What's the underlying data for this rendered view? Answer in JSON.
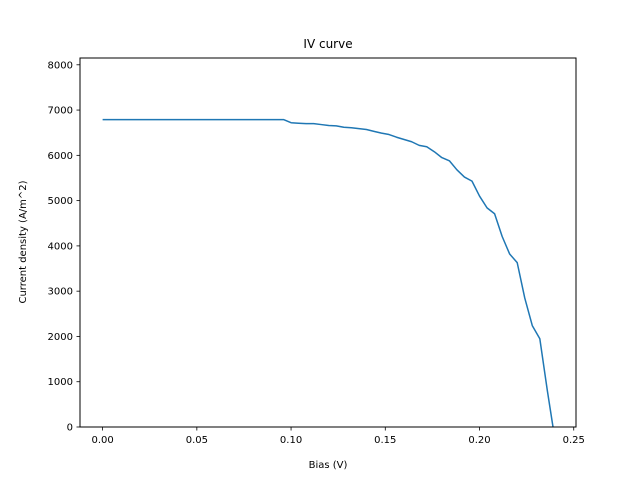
{
  "chart_data": {
    "type": "line",
    "title": "IV curve",
    "xlabel": "Bias (V)",
    "ylabel": "Current density (A/m^2)",
    "xlim": [
      -0.012,
      0.2512
    ],
    "ylim": [
      0,
      8150
    ],
    "xticks": [
      0.0,
      0.05,
      0.1,
      0.15,
      0.2,
      0.25
    ],
    "xtick_labels": [
      "0.00",
      "0.05",
      "0.10",
      "0.15",
      "0.20",
      "0.25"
    ],
    "yticks": [
      0,
      1000,
      2000,
      3000,
      4000,
      5000,
      6000,
      7000,
      8000
    ],
    "ytick_labels": [
      "0",
      "1000",
      "2000",
      "3000",
      "4000",
      "5000",
      "6000",
      "7000",
      "8000"
    ],
    "grid": false,
    "series": [
      {
        "color": "#1f77b4",
        "x": [
          0.0,
          0.01,
          0.02,
          0.03,
          0.04,
          0.05,
          0.06,
          0.07,
          0.08,
          0.09,
          0.096,
          0.1,
          0.104,
          0.108,
          0.112,
          0.116,
          0.12,
          0.124,
          0.128,
          0.132,
          0.136,
          0.14,
          0.144,
          0.148,
          0.152,
          0.156,
          0.16,
          0.164,
          0.168,
          0.172,
          0.176,
          0.18,
          0.184,
          0.188,
          0.192,
          0.196,
          0.2,
          0.204,
          0.208,
          0.212,
          0.216,
          0.22,
          0.224,
          0.228,
          0.232,
          0.236,
          0.239
        ],
        "y": [
          6790,
          6790,
          6790,
          6790,
          6790,
          6790,
          6790,
          6790,
          6790,
          6790,
          6790,
          6720,
          6710,
          6700,
          6700,
          6680,
          6660,
          6650,
          6620,
          6610,
          6590,
          6570,
          6530,
          6490,
          6460,
          6400,
          6350,
          6300,
          6220,
          6190,
          6080,
          5950,
          5880,
          5680,
          5520,
          5430,
          5100,
          4840,
          4710,
          4210,
          3820,
          3630,
          2850,
          2240,
          1950,
          800,
          0
        ]
      }
    ]
  }
}
